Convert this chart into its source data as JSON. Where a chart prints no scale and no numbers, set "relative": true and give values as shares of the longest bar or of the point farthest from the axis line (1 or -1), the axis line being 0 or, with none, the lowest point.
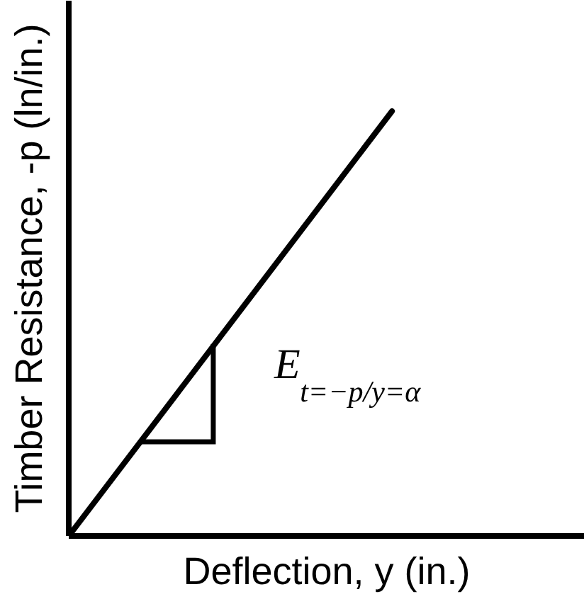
{
  "chart_data": {
    "type": "line",
    "relative": true,
    "xlabel": "Deflection, y (in.)",
    "ylabel": "Timber Resistance, -p (ln/in.)",
    "categories": [
      null,
      null
    ],
    "values": [
      0,
      1
    ],
    "color": "#000000",
    "line_style": "solid",
    "annotations": [
      "E$_{t=−p/y=α}$"
    ]
  }
}
